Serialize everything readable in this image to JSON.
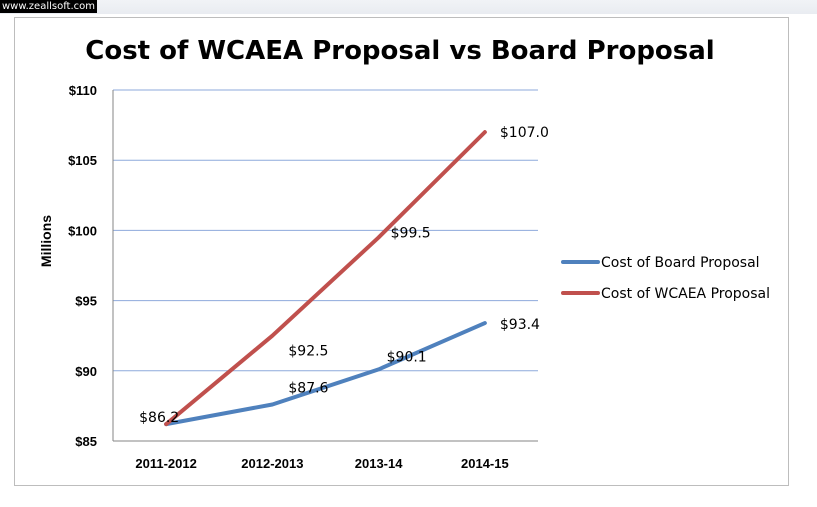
{
  "watermark": "www.zeallsoft.com",
  "chart_data": {
    "type": "line",
    "title": "Cost of WCAEA Proposal vs Board Proposal",
    "xlabel": "",
    "ylabel": "Millions",
    "categories": [
      "2011-2012",
      "2012-2013",
      "2013-14",
      "2014-15"
    ],
    "ylim": [
      85,
      110
    ],
    "ytick_values": [
      85,
      90,
      95,
      100,
      105,
      110
    ],
    "ytick_labels": [
      "$85",
      "$90",
      "$95",
      "$100",
      "$105",
      "$110"
    ],
    "grid": true,
    "legend_position": "right",
    "series": [
      {
        "name": "Cost of Board Proposal",
        "color": "#4f81bd",
        "values": [
          86.2,
          87.6,
          90.1,
          93.4
        ],
        "data_labels": [
          "$86.2",
          "$87.6",
          "$90.1",
          "$93.4"
        ]
      },
      {
        "name": "Cost of WCAEA Proposal",
        "color": "#c0504d",
        "values": [
          86.2,
          92.5,
          99.5,
          107.0
        ],
        "data_labels": [
          "",
          "$92.5",
          "$99.5",
          "$107.0"
        ]
      }
    ]
  }
}
